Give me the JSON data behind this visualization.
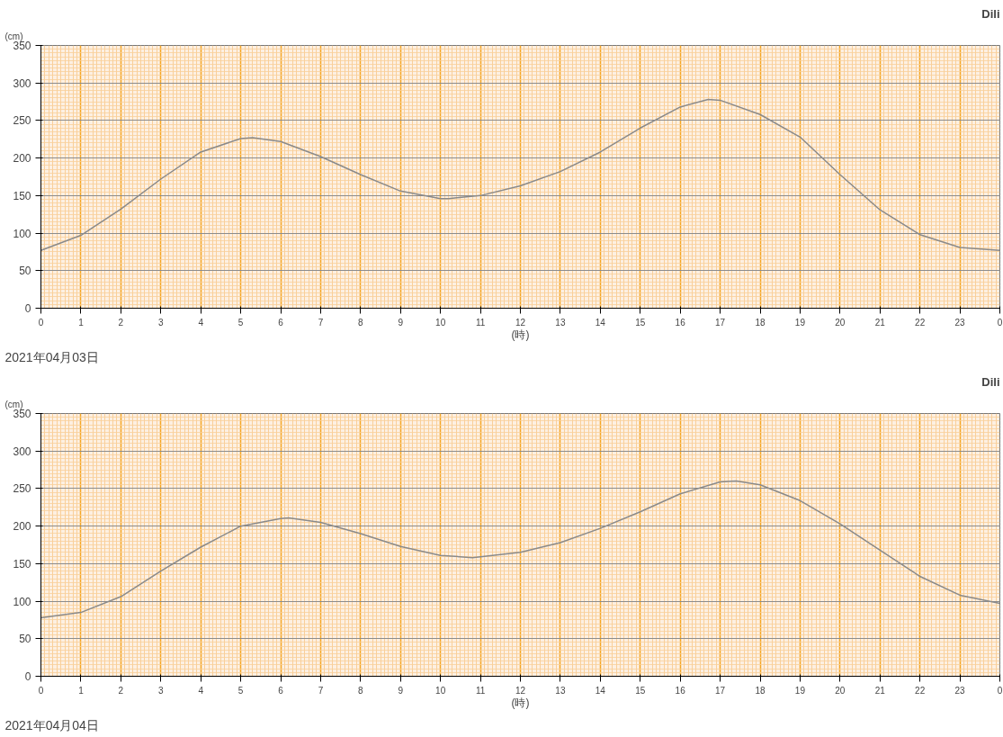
{
  "chart_data": [
    {
      "type": "line",
      "title": "Dili",
      "ylabel": "(cm)",
      "xlabel": "(時)",
      "annotations": [
        "2021年04月03日"
      ],
      "x": [
        "2021-04-03T00:00",
        "2021-04-03T01:00",
        "2021-04-03T02:00",
        "2021-04-03T03:00",
        "2021-04-03T04:00",
        "2021-04-03T05:00",
        "2021-04-03T05:18",
        "2021-04-03T06:00",
        "2021-04-03T07:00",
        "2021-04-03T08:00",
        "2021-04-03T09:00",
        "2021-04-03T10:00",
        "2021-04-03T10:12",
        "2021-04-03T11:00",
        "2021-04-03T12:00",
        "2021-04-03T13:00",
        "2021-04-03T14:00",
        "2021-04-03T15:00",
        "2021-04-03T16:00",
        "2021-04-03T16:42",
        "2021-04-03T17:00",
        "2021-04-03T18:00",
        "2021-04-03T19:00",
        "2021-04-03T20:00",
        "2021-04-03T21:00",
        "2021-04-03T22:00",
        "2021-04-03T23:00",
        "2021-04-04T00:00"
      ],
      "series": [
        {
          "color": "#8a8a8a",
          "values": [
            77,
            97,
            132,
            172,
            208,
            226,
            227,
            222,
            202,
            178,
            156,
            146,
            146,
            150,
            163,
            182,
            208,
            240,
            268,
            278,
            277,
            258,
            228,
            178,
            131,
            98,
            81,
            77
          ]
        }
      ],
      "xlim": [
        "2021-04-03T00:00",
        "2021-04-04T00:00"
      ],
      "ylim": [
        0,
        350
      ],
      "xticks": [
        {
          "value": "2021-04-03T00:00",
          "label": "0"
        },
        {
          "value": "2021-04-03T01:00",
          "label": "1"
        },
        {
          "value": "2021-04-03T02:00",
          "label": "2"
        },
        {
          "value": "2021-04-03T03:00",
          "label": "3"
        },
        {
          "value": "2021-04-03T04:00",
          "label": "4"
        },
        {
          "value": "2021-04-03T05:00",
          "label": "5"
        },
        {
          "value": "2021-04-03T06:00",
          "label": "6"
        },
        {
          "value": "2021-04-03T07:00",
          "label": "7"
        },
        {
          "value": "2021-04-03T08:00",
          "label": "8"
        },
        {
          "value": "2021-04-03T09:00",
          "label": "9"
        },
        {
          "value": "2021-04-03T10:00",
          "label": "10"
        },
        {
          "value": "2021-04-03T11:00",
          "label": "11"
        },
        {
          "value": "2021-04-03T12:00",
          "label": "12"
        },
        {
          "value": "2021-04-03T13:00",
          "label": "13"
        },
        {
          "value": "2021-04-03T14:00",
          "label": "14"
        },
        {
          "value": "2021-04-03T15:00",
          "label": "15"
        },
        {
          "value": "2021-04-03T16:00",
          "label": "16"
        },
        {
          "value": "2021-04-03T17:00",
          "label": "17"
        },
        {
          "value": "2021-04-03T18:00",
          "label": "18"
        },
        {
          "value": "2021-04-03T19:00",
          "label": "19"
        },
        {
          "value": "2021-04-03T20:00",
          "label": "20"
        },
        {
          "value": "2021-04-03T21:00",
          "label": "21"
        },
        {
          "value": "2021-04-03T22:00",
          "label": "22"
        },
        {
          "value": "2021-04-03T23:00",
          "label": "23"
        },
        {
          "value": "2021-04-04T00:00",
          "label": "0"
        }
      ],
      "yticks": [
        0,
        50,
        100,
        150,
        200,
        250,
        300,
        350
      ],
      "grid": true,
      "marker": "none",
      "line_style": "solid"
    },
    {
      "type": "line",
      "title": "Dili",
      "ylabel": "(cm)",
      "xlabel": "(時)",
      "annotations": [
        "2021年04月04日"
      ],
      "x": [
        "2021-04-04T00:00",
        "2021-04-04T01:00",
        "2021-04-04T02:00",
        "2021-04-04T03:00",
        "2021-04-04T04:00",
        "2021-04-04T05:00",
        "2021-04-04T06:00",
        "2021-04-04T06:12",
        "2021-04-04T07:00",
        "2021-04-04T08:00",
        "2021-04-04T09:00",
        "2021-04-04T10:00",
        "2021-04-04T10:48",
        "2021-04-04T11:00",
        "2021-04-04T12:00",
        "2021-04-04T13:00",
        "2021-04-04T14:00",
        "2021-04-04T15:00",
        "2021-04-04T16:00",
        "2021-04-04T17:00",
        "2021-04-04T17:24",
        "2021-04-04T18:00",
        "2021-04-04T19:00",
        "2021-04-04T20:00",
        "2021-04-04T21:00",
        "2021-04-04T22:00",
        "2021-04-04T23:00",
        "2021-04-05T00:00"
      ],
      "series": [
        {
          "color": "#8a8a8a",
          "values": [
            78,
            85,
            106,
            140,
            172,
            200,
            210,
            211,
            205,
            190,
            173,
            161,
            158,
            159,
            165,
            178,
            197,
            219,
            243,
            259,
            260,
            255,
            234,
            203,
            168,
            133,
            108,
            97
          ]
        }
      ],
      "xlim": [
        "2021-04-04T00:00",
        "2021-04-05T00:00"
      ],
      "ylim": [
        0,
        350
      ],
      "xticks": [
        {
          "value": "2021-04-04T00:00",
          "label": "0"
        },
        {
          "value": "2021-04-04T01:00",
          "label": "1"
        },
        {
          "value": "2021-04-04T02:00",
          "label": "2"
        },
        {
          "value": "2021-04-04T03:00",
          "label": "3"
        },
        {
          "value": "2021-04-04T04:00",
          "label": "4"
        },
        {
          "value": "2021-04-04T05:00",
          "label": "5"
        },
        {
          "value": "2021-04-04T06:00",
          "label": "6"
        },
        {
          "value": "2021-04-04T07:00",
          "label": "7"
        },
        {
          "value": "2021-04-04T08:00",
          "label": "8"
        },
        {
          "value": "2021-04-04T09:00",
          "label": "9"
        },
        {
          "value": "2021-04-04T10:00",
          "label": "10"
        },
        {
          "value": "2021-04-04T11:00",
          "label": "11"
        },
        {
          "value": "2021-04-04T12:00",
          "label": "12"
        },
        {
          "value": "2021-04-04T13:00",
          "label": "13"
        },
        {
          "value": "2021-04-04T14:00",
          "label": "14"
        },
        {
          "value": "2021-04-04T15:00",
          "label": "15"
        },
        {
          "value": "2021-04-04T16:00",
          "label": "16"
        },
        {
          "value": "2021-04-04T17:00",
          "label": "17"
        },
        {
          "value": "2021-04-04T18:00",
          "label": "18"
        },
        {
          "value": "2021-04-04T19:00",
          "label": "19"
        },
        {
          "value": "2021-04-04T20:00",
          "label": "20"
        },
        {
          "value": "2021-04-04T21:00",
          "label": "21"
        },
        {
          "value": "2021-04-04T22:00",
          "label": "22"
        },
        {
          "value": "2021-04-04T23:00",
          "label": "23"
        },
        {
          "value": "2021-04-05T00:00",
          "label": "0"
        }
      ],
      "yticks": [
        0,
        50,
        100,
        150,
        200,
        250,
        300,
        350
      ],
      "grid": true,
      "marker": "none",
      "line_style": "solid"
    }
  ]
}
